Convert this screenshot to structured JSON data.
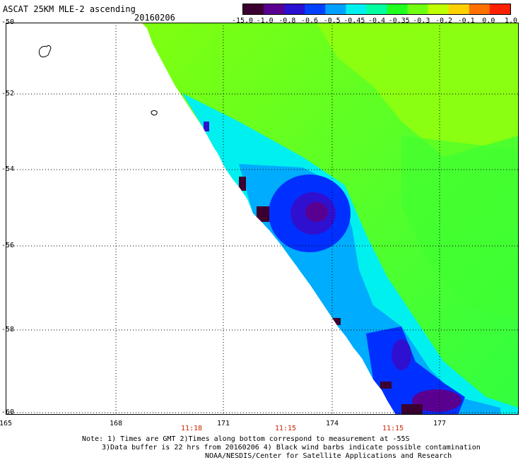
{
  "header": {
    "title": "ASCAT 25KM MLE-2 ascending",
    "date": "20160206"
  },
  "colorbar": {
    "labels": [
      "-15.0",
      "-1.0",
      "-0.8",
      "-0.6",
      "-0.5",
      "-0.45",
      "-0.4",
      "-0.35",
      "-0.3",
      "-0.2",
      "-0.1",
      "0.0",
      "1.0"
    ],
    "colors": [
      "#3a0030",
      "#5a0090",
      "#2a10d0",
      "#0040ff",
      "#00a0ff",
      "#00f0f0",
      "#00ffa0",
      "#20ff20",
      "#70ff10",
      "#c0ff00",
      "#ffd000",
      "#ff7000",
      "#ff2000"
    ]
  },
  "axes": {
    "lat_labels": [
      "-50",
      "-52",
      "-54",
      "-56",
      "-58",
      "-60"
    ],
    "lon_labels": [
      "165",
      "168",
      "171",
      "174",
      "177"
    ],
    "time_labels": [
      "11:18",
      "11:15",
      "11:15"
    ]
  },
  "notes": {
    "line1": "Note: 1) Times are GMT 2)Times along bottom correspond to measurement at -55S",
    "line2": "3)Data buffer is 22 hrs from 20160206 4) Black wind barbs indicate possible contamination",
    "line3": "NOAA/NESDIS/Center for Satellite Applications and Research"
  }
}
